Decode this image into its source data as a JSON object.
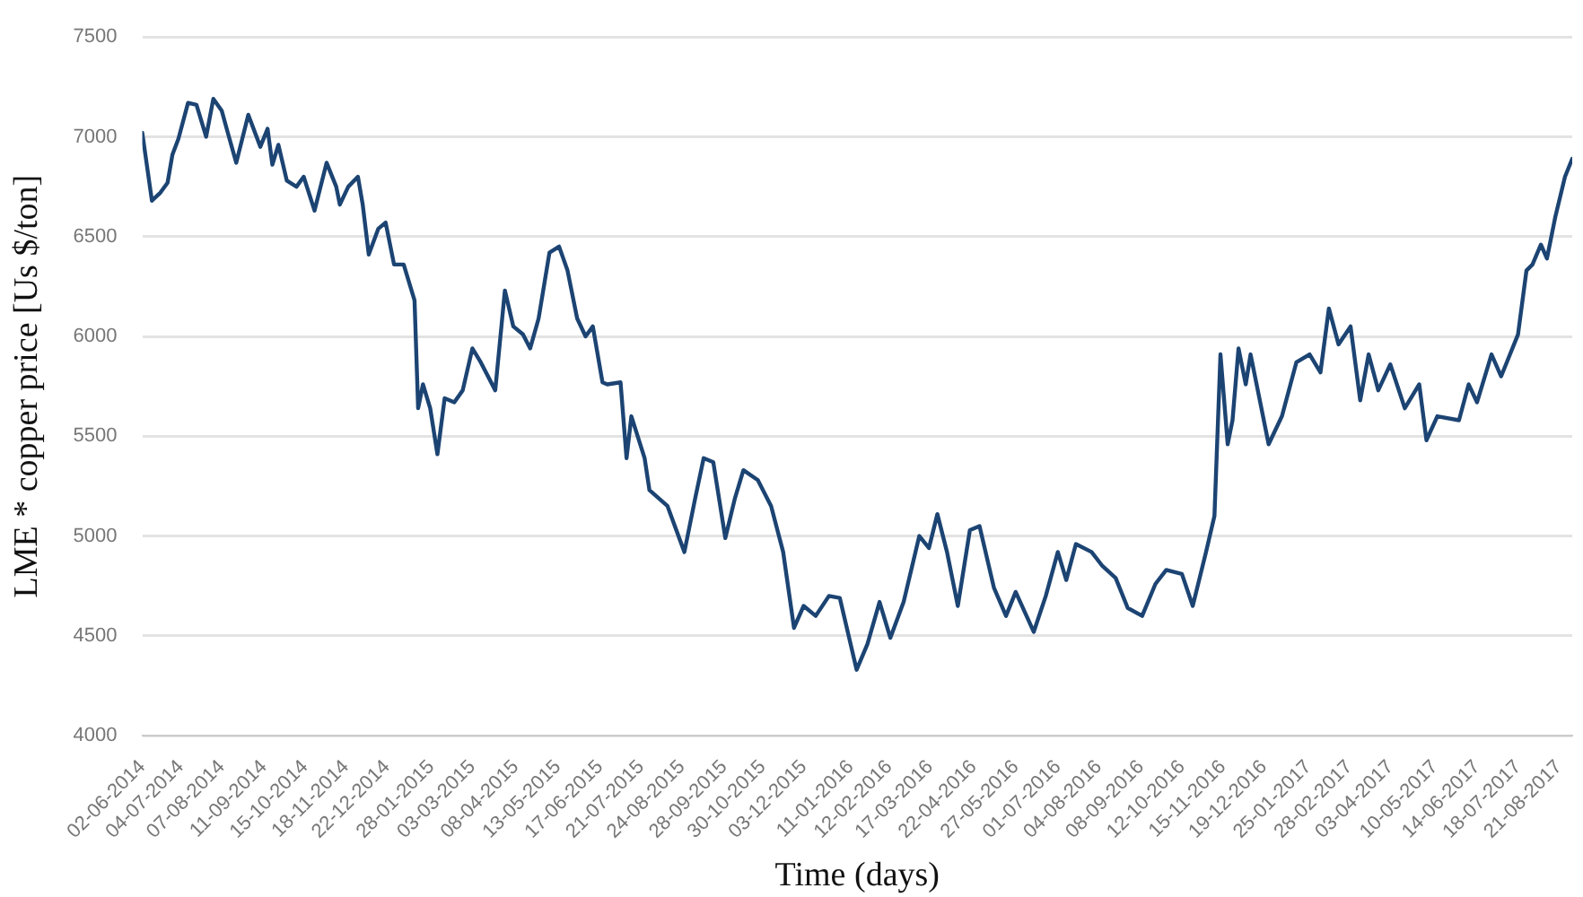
{
  "chart_data": {
    "type": "line",
    "xlabel": "Time (days)",
    "ylabel": "LME * copper price [Us $/ton]",
    "x": [
      "2014-06-02",
      "2014-06-10",
      "2014-06-17",
      "2014-06-23",
      "2014-06-27",
      "2014-07-02",
      "2014-07-10",
      "2014-07-17",
      "2014-07-25",
      "2014-07-31",
      "2014-08-07",
      "2014-08-12",
      "2014-08-19",
      "2014-08-29",
      "2014-09-08",
      "2014-09-14",
      "2014-09-18",
      "2014-09-23",
      "2014-09-30",
      "2014-10-08",
      "2014-10-14",
      "2014-10-23",
      "2014-11-02",
      "2014-11-10",
      "2014-11-13",
      "2014-11-20",
      "2014-11-28",
      "2014-12-02",
      "2014-12-07",
      "2014-12-15",
      "2014-12-21",
      "2014-12-28",
      "2015-01-05",
      "2015-01-14",
      "2015-01-17",
      "2015-01-21",
      "2015-01-27",
      "2015-02-02",
      "2015-02-08",
      "2015-02-16",
      "2015-02-23",
      "2015-03-03",
      "2015-03-10",
      "2015-03-22",
      "2015-03-30",
      "2015-04-06",
      "2015-04-14",
      "2015-04-20",
      "2015-04-27",
      "2015-05-06",
      "2015-05-14",
      "2015-05-21",
      "2015-05-29",
      "2015-06-05",
      "2015-06-11",
      "2015-06-19",
      "2015-06-23",
      "2015-07-04",
      "2015-07-09",
      "2015-07-13",
      "2015-07-24",
      "2015-07-28",
      "2015-08-12",
      "2015-08-26",
      "2015-09-04",
      "2015-09-11",
      "2015-09-19",
      "2015-09-29",
      "2015-10-07",
      "2015-10-14",
      "2015-10-26",
      "2015-11-06",
      "2015-11-16",
      "2015-11-25",
      "2015-12-03",
      "2015-12-13",
      "2015-12-24",
      "2016-01-02",
      "2016-01-16",
      "2016-01-25",
      "2016-02-04",
      "2016-02-13",
      "2016-02-24",
      "2016-03-08",
      "2016-03-16",
      "2016-03-23",
      "2016-03-31",
      "2016-04-09",
      "2016-04-19",
      "2016-04-27",
      "2016-05-09",
      "2016-05-19",
      "2016-05-27",
      "2016-06-11",
      "2016-06-21",
      "2016-07-01",
      "2016-07-08",
      "2016-07-16",
      "2016-07-29",
      "2016-08-07",
      "2016-08-18",
      "2016-08-28",
      "2016-09-09",
      "2016-09-20",
      "2016-09-29",
      "2016-10-12",
      "2016-10-21",
      "2016-11-01",
      "2016-11-08",
      "2016-11-13",
      "2016-11-19",
      "2016-11-23",
      "2016-11-28",
      "2016-12-04",
      "2016-12-08",
      "2016-12-23",
      "2017-01-03",
      "2017-01-15",
      "2017-01-26",
      "2017-02-04",
      "2017-02-11",
      "2017-02-19",
      "2017-03-01",
      "2017-03-09",
      "2017-03-16",
      "2017-03-24",
      "2017-04-03",
      "2017-04-15",
      "2017-04-27",
      "2017-05-03",
      "2017-05-12",
      "2017-05-30",
      "2017-06-07",
      "2017-06-14",
      "2017-06-26",
      "2017-07-04",
      "2017-07-18",
      "2017-07-25",
      "2017-07-30",
      "2017-08-06",
      "2017-08-11",
      "2017-08-18",
      "2017-08-26",
      "2017-09-01"
    ],
    "series": [
      {
        "color": "#1c4473",
        "values": [
          7020,
          6680,
          6720,
          6770,
          6910,
          6990,
          7170,
          7160,
          7000,
          7190,
          7130,
          7020,
          6870,
          7110,
          6950,
          7040,
          6860,
          6960,
          6780,
          6750,
          6800,
          6630,
          6870,
          6750,
          6660,
          6750,
          6800,
          6660,
          6410,
          6540,
          6570,
          6360,
          6360,
          6180,
          5640,
          5760,
          5640,
          5410,
          5690,
          5670,
          5730,
          5940,
          5870,
          5730,
          6230,
          6050,
          6010,
          5940,
          6090,
          6420,
          6450,
          6330,
          6090,
          6000,
          6050,
          5770,
          5760,
          5770,
          5390,
          5600,
          5390,
          5230,
          5150,
          4920,
          5190,
          5390,
          5370,
          4990,
          5190,
          5330,
          5280,
          5150,
          4920,
          4540,
          4650,
          4600,
          4700,
          4690,
          4330,
          4460,
          4670,
          4490,
          4670,
          5000,
          4940,
          5110,
          4920,
          4650,
          5030,
          5050,
          4740,
          4600,
          4720,
          4520,
          4700,
          4920,
          4780,
          4960,
          4920,
          4850,
          4790,
          4640,
          4600,
          4760,
          4830,
          4810,
          4650,
          4920,
          5100,
          5910,
          5460,
          5580,
          5940,
          5760,
          5910,
          5460,
          5600,
          5870,
          5910,
          5820,
          6140,
          5960,
          6050,
          5680,
          5910,
          5730,
          5860,
          5640,
          5760,
          5480,
          5600,
          5580,
          5760,
          5670,
          5910,
          5800,
          6010,
          6330,
          6360,
          6460,
          6390,
          6600,
          6800,
          6890
        ]
      }
    ],
    "xlim": [
      "2014-06-02",
      "2017-09-01"
    ],
    "xticks": [
      {
        "value": "2014-06-02",
        "label": "02-06-2014"
      },
      {
        "value": "2014-07-04",
        "label": "04-07-2014"
      },
      {
        "value": "2014-08-07",
        "label": "07-08-2014"
      },
      {
        "value": "2014-09-11",
        "label": "11-09-2014"
      },
      {
        "value": "2014-10-15",
        "label": "15-10-2014"
      },
      {
        "value": "2014-11-18",
        "label": "18-11-2014"
      },
      {
        "value": "2014-12-22",
        "label": "22-12-2014"
      },
      {
        "value": "2015-01-28",
        "label": "28-01-2015"
      },
      {
        "value": "2015-03-03",
        "label": "03-03-2015"
      },
      {
        "value": "2015-04-08",
        "label": "08-04-2015"
      },
      {
        "value": "2015-05-13",
        "label": "13-05-2015"
      },
      {
        "value": "2015-06-17",
        "label": "17-06-2015"
      },
      {
        "value": "2015-07-21",
        "label": "21-07-2015"
      },
      {
        "value": "2015-08-24",
        "label": "24-08-2015"
      },
      {
        "value": "2015-09-28",
        "label": "28-09-2015"
      },
      {
        "value": "2015-10-30",
        "label": "30-10-2015"
      },
      {
        "value": "2015-12-03",
        "label": "03-12-2015"
      },
      {
        "value": "2016-01-11",
        "label": "11-01-2016"
      },
      {
        "value": "2016-02-12",
        "label": "12-02-2016"
      },
      {
        "value": "2016-03-17",
        "label": "17-03-2016"
      },
      {
        "value": "2016-04-22",
        "label": "22-04-2016"
      },
      {
        "value": "2016-05-27",
        "label": "27-05-2016"
      },
      {
        "value": "2016-07-01",
        "label": "01-07-2016"
      },
      {
        "value": "2016-08-04",
        "label": "04-08-2016"
      },
      {
        "value": "2016-09-08",
        "label": "08-09-2016"
      },
      {
        "value": "2016-10-12",
        "label": "12-10-2016"
      },
      {
        "value": "2016-11-15",
        "label": "15-11-2016"
      },
      {
        "value": "2016-12-19",
        "label": "19-12-2016"
      },
      {
        "value": "2017-01-25",
        "label": "25-01-2017"
      },
      {
        "value": "2017-02-28",
        "label": "28-02-2017"
      },
      {
        "value": "2017-04-03",
        "label": "03-04-2017"
      },
      {
        "value": "2017-05-10",
        "label": "10-05-2017"
      },
      {
        "value": "2017-06-14",
        "label": "14-06-2017"
      },
      {
        "value": "2017-07-18",
        "label": "18-07-2017"
      },
      {
        "value": "2017-08-21",
        "label": "21-08-2017"
      }
    ],
    "ylim": [
      4000,
      7500
    ],
    "yticks": [
      4000,
      4500,
      5000,
      5500,
      6000,
      6500,
      7000,
      7500
    ],
    "grid": "y",
    "legend": false,
    "marker": "none",
    "line_style": "solid"
  }
}
